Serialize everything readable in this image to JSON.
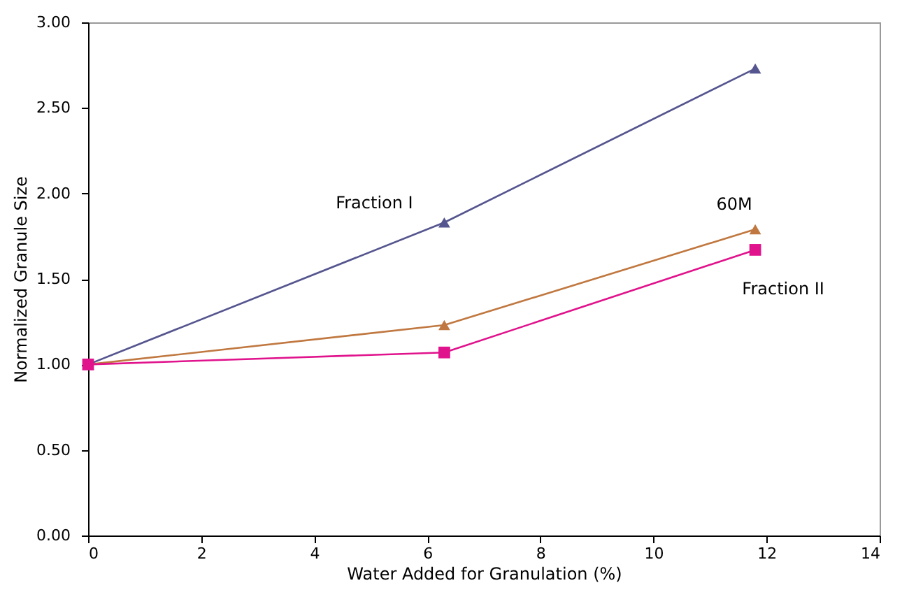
{
  "chart_data": {
    "type": "line",
    "xlabel": "Water Added for Granulation (%)",
    "ylabel": "Normalized Granule Size",
    "x": [
      0,
      6.3,
      11.8
    ],
    "series": [
      {
        "name": "Fraction I",
        "color": "#55558f",
        "marker": "triangle",
        "values": [
          1.0,
          1.83,
          2.73
        ]
      },
      {
        "name": "60M",
        "color": "#c07840",
        "marker": "triangle",
        "values": [
          1.0,
          1.23,
          1.79
        ]
      },
      {
        "name": "Fraction II",
        "color": "#e0128c",
        "marker": "square",
        "values": [
          1.0,
          1.07,
          1.67
        ]
      }
    ],
    "xlim": [
      0,
      14
    ],
    "xticks": [
      0,
      2,
      4,
      6,
      8,
      10,
      12,
      14
    ],
    "ylim": [
      0,
      3
    ],
    "yticks": [
      {
        "value": 0,
        "label": "0.00"
      },
      {
        "value": 0.5,
        "label": "0.50"
      },
      {
        "value": 1,
        "label": "1.00"
      },
      {
        "value": 1.5,
        "label": "1.50"
      },
      {
        "value": 2,
        "label": "2.00"
      },
      {
        "value": 2.5,
        "label": "2.50"
      },
      {
        "value": 3,
        "label": "3.00"
      }
    ],
    "grid": false,
    "line_style": "solid"
  }
}
